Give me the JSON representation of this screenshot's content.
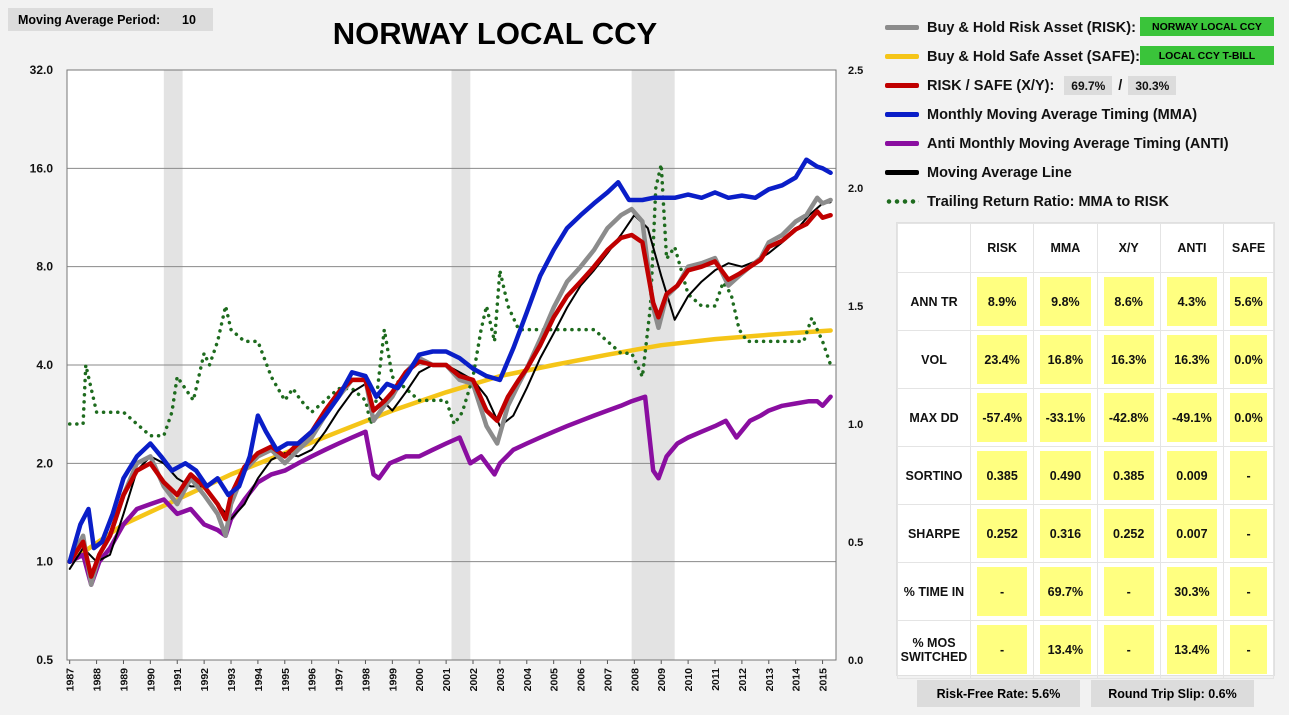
{
  "header": {
    "ma_label": "Moving Average Period:",
    "ma_value": "10"
  },
  "chart_data": {
    "type": "line",
    "title": "NORWAY LOCAL CCY",
    "y_scale": "log2",
    "ylim": [
      0.5,
      32
    ],
    "y_ticks": [
      "0.5",
      "1.0",
      "2.0",
      "4.0",
      "8.0",
      "16.0",
      "32.0"
    ],
    "y2lim": [
      0.0,
      2.5
    ],
    "y2_ticks": [
      "0.0",
      "0.5",
      "1.0",
      "1.5",
      "2.0",
      "2.5"
    ],
    "x_ticks": [
      "1987",
      "1988",
      "1989",
      "1990",
      "1991",
      "1992",
      "1993",
      "1994",
      "1995",
      "1996",
      "1997",
      "1998",
      "1999",
      "2000",
      "2001",
      "2002",
      "2003",
      "2004",
      "2005",
      "2006",
      "2007",
      "2008",
      "2009",
      "2010",
      "2011",
      "2012",
      "2013",
      "2014",
      "2015"
    ],
    "shaded_periods": [
      [
        1990.5,
        1991.2
      ],
      [
        2001.2,
        2001.9
      ],
      [
        2007.9,
        2009.5
      ]
    ],
    "series": [
      {
        "name": "Buy & Hold Risk Asset (RISK):",
        "color": "#8c8c8c",
        "axis": "left",
        "x": [
          1987.0,
          1987.5,
          1987.8,
          1988.1,
          1988.5,
          1989.0,
          1989.5,
          1990.0,
          1990.5,
          1991.0,
          1991.5,
          1992.0,
          1992.5,
          1992.8,
          1993.0,
          1993.5,
          1994.0,
          1994.5,
          1995.0,
          1995.5,
          1996.0,
          1996.5,
          1997.0,
          1997.5,
          1998.0,
          1998.3,
          1998.7,
          1999.0,
          1999.5,
          2000.0,
          2000.5,
          2001.0,
          2001.5,
          2002.0,
          2002.5,
          2002.9,
          2003.3,
          2003.7,
          2004.0,
          2004.5,
          2005.0,
          2005.5,
          2006.0,
          2006.5,
          2007.0,
          2007.5,
          2007.9,
          2008.3,
          2008.7,
          2008.9,
          2009.2,
          2009.6,
          2010.0,
          2010.5,
          2011.0,
          2011.5,
          2011.9,
          2012.3,
          2012.7,
          2013.0,
          2013.5,
          2014.0,
          2014.4,
          2014.8,
          2015.0,
          2015.3
        ],
        "y": [
          1.0,
          1.2,
          0.85,
          1.05,
          1.2,
          1.6,
          2.0,
          2.1,
          1.7,
          1.5,
          1.8,
          1.6,
          1.4,
          1.2,
          1.5,
          1.9,
          2.1,
          2.2,
          2.0,
          2.2,
          2.4,
          2.8,
          3.2,
          3.6,
          3.6,
          2.7,
          3.0,
          3.2,
          3.8,
          4.2,
          4.0,
          4.0,
          3.6,
          3.5,
          2.6,
          2.3,
          3.0,
          3.5,
          3.9,
          4.8,
          6.0,
          7.2,
          8.0,
          9.0,
          10.5,
          11.5,
          12.0,
          11.0,
          6.0,
          5.2,
          6.5,
          7.0,
          8.0,
          8.2,
          8.5,
          7.0,
          7.5,
          8.0,
          8.5,
          9.5,
          10.0,
          11.0,
          11.5,
          13.0,
          12.5,
          12.8
        ]
      },
      {
        "name": "Buy & Hold Safe Asset (SAFE):",
        "color": "#f5c518",
        "axis": "left",
        "x": [
          1987.0,
          1989.0,
          1991.0,
          1993.0,
          1995.0,
          1997.0,
          1999.0,
          2001.0,
          2003.0,
          2005.0,
          2007.0,
          2009.0,
          2011.0,
          2013.0,
          2015.3
        ],
        "y": [
          1.0,
          1.3,
          1.55,
          1.85,
          2.15,
          2.5,
          2.9,
          3.3,
          3.7,
          4.0,
          4.3,
          4.6,
          4.8,
          4.95,
          5.1
        ]
      },
      {
        "name": "RISK / SAFE (X/Y):",
        "color": "#c00000",
        "axis": "left",
        "x": [
          1987.0,
          1987.5,
          1987.8,
          1988.1,
          1988.5,
          1989.0,
          1989.5,
          1990.0,
          1990.5,
          1991.0,
          1991.5,
          1992.0,
          1992.5,
          1992.8,
          1993.0,
          1993.5,
          1994.0,
          1994.5,
          1995.0,
          1995.5,
          1996.0,
          1996.5,
          1997.0,
          1997.5,
          1998.0,
          1998.3,
          1998.7,
          1999.0,
          1999.5,
          2000.0,
          2000.5,
          2001.0,
          2001.5,
          2002.0,
          2002.5,
          2002.9,
          2003.3,
          2003.7,
          2004.0,
          2004.5,
          2005.0,
          2005.5,
          2006.0,
          2006.5,
          2007.0,
          2007.5,
          2007.9,
          2008.3,
          2008.7,
          2008.9,
          2009.2,
          2009.6,
          2010.0,
          2010.5,
          2011.0,
          2011.5,
          2011.9,
          2012.3,
          2012.7,
          2013.0,
          2013.5,
          2014.0,
          2014.4,
          2014.8,
          2015.0,
          2015.3
        ],
        "y": [
          1.0,
          1.15,
          0.9,
          1.05,
          1.2,
          1.6,
          1.9,
          2.0,
          1.75,
          1.6,
          1.85,
          1.7,
          1.5,
          1.35,
          1.6,
          1.95,
          2.15,
          2.25,
          2.1,
          2.3,
          2.5,
          2.9,
          3.3,
          3.6,
          3.6,
          2.9,
          3.1,
          3.3,
          3.8,
          4.1,
          4.0,
          4.0,
          3.7,
          3.6,
          2.9,
          2.7,
          3.2,
          3.6,
          3.9,
          4.6,
          5.6,
          6.5,
          7.2,
          8.0,
          9.0,
          9.8,
          10.0,
          9.5,
          6.2,
          5.6,
          6.6,
          7.0,
          7.8,
          8.0,
          8.3,
          7.3,
          7.6,
          8.0,
          8.4,
          9.2,
          9.6,
          10.4,
          10.8,
          11.8,
          11.3,
          11.5
        ]
      },
      {
        "name": "Monthly Moving Average Timing (MMA)",
        "color": "#0a1ec8",
        "axis": "left",
        "x": [
          1987.0,
          1987.4,
          1987.7,
          1987.9,
          1988.2,
          1988.6,
          1989.0,
          1989.5,
          1990.0,
          1990.4,
          1990.8,
          1991.3,
          1991.7,
          1992.1,
          1992.5,
          1992.9,
          1993.3,
          1993.7,
          1994.0,
          1994.3,
          1994.7,
          1995.1,
          1995.5,
          1996.0,
          1996.5,
          1997.0,
          1997.5,
          1998.0,
          1998.4,
          1998.8,
          1999.2,
          1999.6,
          2000.0,
          2000.5,
          2001.0,
          2001.5,
          2002.0,
          2002.5,
          2003.0,
          2003.5,
          2004.0,
          2004.5,
          2005.0,
          2005.5,
          2006.0,
          2006.5,
          2007.0,
          2007.4,
          2007.8,
          2008.3,
          2008.7,
          2009.1,
          2009.5,
          2010.0,
          2010.5,
          2011.0,
          2011.5,
          2012.0,
          2012.5,
          2013.0,
          2013.5,
          2014.0,
          2014.4,
          2014.8,
          2015.0,
          2015.3
        ],
        "y": [
          1.0,
          1.3,
          1.45,
          1.1,
          1.15,
          1.4,
          1.8,
          2.1,
          2.3,
          2.1,
          1.9,
          2.0,
          1.9,
          1.7,
          1.8,
          1.6,
          1.7,
          2.1,
          2.8,
          2.5,
          2.2,
          2.3,
          2.3,
          2.5,
          2.8,
          3.2,
          3.8,
          3.7,
          3.2,
          3.5,
          3.4,
          3.8,
          4.3,
          4.4,
          4.4,
          4.2,
          3.9,
          3.7,
          3.6,
          4.5,
          5.8,
          7.5,
          9.0,
          10.5,
          11.5,
          12.5,
          13.5,
          14.5,
          12.8,
          12.8,
          13.0,
          13.0,
          13.0,
          13.3,
          13.0,
          13.5,
          13.0,
          13.2,
          13.0,
          13.8,
          14.2,
          15.0,
          17.0,
          16.2,
          16.0,
          15.5
        ]
      },
      {
        "name": "Anti Monthly Moving Average Timing (ANTI)",
        "color": "#8a0ea0",
        "axis": "left",
        "x": [
          1987.0,
          1987.5,
          1987.8,
          1988.1,
          1988.5,
          1989.0,
          1989.5,
          1990.0,
          1990.5,
          1991.0,
          1991.5,
          1992.0,
          1992.5,
          1992.8,
          1993.0,
          1993.5,
          1994.0,
          1994.5,
          1995.0,
          1995.5,
          1996.0,
          1996.5,
          1997.0,
          1997.5,
          1998.0,
          1998.3,
          1998.5,
          1998.9,
          1999.5,
          2000.0,
          2000.5,
          2001.0,
          2001.5,
          2001.9,
          2002.3,
          2002.8,
          2003.0,
          2003.5,
          2004.0,
          2004.5,
          2005.0,
          2005.5,
          2006.0,
          2006.5,
          2007.0,
          2007.5,
          2007.9,
          2008.4,
          2008.7,
          2008.9,
          2009.2,
          2009.6,
          2010.0,
          2010.5,
          2011.0,
          2011.4,
          2011.8,
          2012.3,
          2012.7,
          2013.0,
          2013.5,
          2014.0,
          2014.5,
          2014.8,
          2015.0,
          2015.3
        ],
        "y": [
          1.0,
          1.05,
          0.85,
          1.0,
          1.1,
          1.3,
          1.45,
          1.5,
          1.55,
          1.4,
          1.45,
          1.3,
          1.25,
          1.2,
          1.35,
          1.55,
          1.75,
          1.85,
          1.9,
          2.0,
          2.1,
          2.2,
          2.3,
          2.4,
          2.5,
          1.85,
          1.8,
          2.0,
          2.1,
          2.1,
          2.2,
          2.3,
          2.4,
          2.0,
          2.1,
          1.85,
          2.0,
          2.2,
          2.3,
          2.4,
          2.5,
          2.6,
          2.7,
          2.8,
          2.9,
          3.0,
          3.1,
          3.2,
          1.9,
          1.8,
          2.1,
          2.3,
          2.4,
          2.5,
          2.6,
          2.7,
          2.4,
          2.7,
          2.8,
          2.9,
          3.0,
          3.05,
          3.1,
          3.1,
          3.0,
          3.2
        ]
      },
      {
        "name": "Moving Average Line",
        "color": "#000000",
        "axis": "left",
        "x": [
          1987.0,
          1987.5,
          1988.0,
          1988.5,
          1989.0,
          1989.5,
          1990.0,
          1990.5,
          1991.0,
          1991.5,
          1992.0,
          1992.5,
          1993.0,
          1993.5,
          1994.0,
          1994.5,
          1995.0,
          1995.5,
          1996.0,
          1996.5,
          1997.0,
          1997.5,
          1998.0,
          1998.5,
          1999.0,
          1999.5,
          2000.0,
          2000.5,
          2001.0,
          2001.5,
          2002.0,
          2002.5,
          2003.0,
          2003.5,
          2004.0,
          2004.5,
          2005.0,
          2005.5,
          2006.0,
          2006.5,
          2007.0,
          2007.5,
          2008.0,
          2008.5,
          2009.0,
          2009.5,
          2010.0,
          2010.5,
          2011.0,
          2011.5,
          2012.0,
          2012.5,
          2013.0,
          2013.5,
          2014.0,
          2014.5,
          2015.0,
          2015.3
        ],
        "y": [
          0.95,
          1.1,
          1.0,
          1.05,
          1.4,
          1.9,
          2.1,
          2.0,
          1.8,
          1.7,
          1.7,
          1.5,
          1.35,
          1.5,
          1.8,
          2.05,
          2.15,
          2.1,
          2.2,
          2.5,
          2.9,
          3.3,
          3.5,
          3.2,
          2.9,
          3.3,
          3.8,
          4.0,
          4.0,
          3.8,
          3.6,
          3.2,
          2.6,
          2.8,
          3.4,
          4.2,
          5.0,
          6.0,
          7.0,
          7.8,
          8.8,
          10.0,
          11.5,
          10.5,
          7.5,
          5.5,
          6.5,
          7.2,
          7.8,
          8.2,
          8.0,
          8.3,
          8.8,
          9.5,
          10.3,
          11.5,
          12.5,
          12.6
        ]
      },
      {
        "name": "Trailing Return Ratio: MMA to RISK",
        "color": "#1e6b1e",
        "axis": "right",
        "dotted": true,
        "x": [
          1987.0,
          1987.5,
          1987.6,
          1987.8,
          1988.0,
          1988.5,
          1989.0,
          1989.5,
          1990.0,
          1990.5,
          1990.8,
          1991.0,
          1991.3,
          1991.6,
          1992.0,
          1992.2,
          1992.5,
          1992.8,
          1993.0,
          1993.5,
          1994.0,
          1994.5,
          1995.0,
          1995.3,
          1995.6,
          1996.0,
          1996.5,
          1997.0,
          1997.5,
          1998.0,
          1998.2,
          1998.4,
          1998.7,
          1999.0,
          1999.5,
          2000.0,
          2000.5,
          2001.0,
          2001.3,
          2001.6,
          2002.0,
          2002.3,
          2002.5,
          2002.8,
          2003.0,
          2003.3,
          2003.7,
          2004.0,
          2004.5,
          2005.0,
          2005.5,
          2006.0,
          2006.5,
          2007.0,
          2007.5,
          2007.9,
          2008.3,
          2008.6,
          2008.8,
          2009.0,
          2009.2,
          2009.5,
          2010.0,
          2010.5,
          2011.0,
          2011.3,
          2011.6,
          2011.9,
          2012.2,
          2012.5,
          2013.0,
          2013.5,
          2014.0,
          2014.3,
          2014.6,
          2015.0,
          2015.3
        ],
        "y": [
          1.0,
          1.0,
          1.25,
          1.15,
          1.05,
          1.05,
          1.05,
          1.0,
          0.95,
          0.95,
          1.05,
          1.2,
          1.15,
          1.1,
          1.3,
          1.25,
          1.35,
          1.5,
          1.4,
          1.35,
          1.35,
          1.2,
          1.1,
          1.15,
          1.1,
          1.05,
          1.1,
          1.15,
          1.15,
          1.1,
          1.0,
          1.1,
          1.4,
          1.2,
          1.15,
          1.1,
          1.1,
          1.1,
          1.0,
          1.05,
          1.2,
          1.4,
          1.5,
          1.35,
          1.65,
          1.5,
          1.4,
          1.4,
          1.4,
          1.4,
          1.4,
          1.4,
          1.4,
          1.35,
          1.3,
          1.3,
          1.2,
          1.5,
          2.0,
          2.1,
          1.7,
          1.75,
          1.55,
          1.5,
          1.5,
          1.6,
          1.55,
          1.4,
          1.35,
          1.35,
          1.35,
          1.35,
          1.35,
          1.35,
          1.45,
          1.35,
          1.25
        ]
      }
    ]
  },
  "legend": {
    "risk_badge": "NORWAY LOCAL CCY",
    "safe_badge": "LOCAL CCY T-BILL",
    "xy_risk_pct": "69.7%",
    "xy_sep": "/",
    "xy_safe_pct": "30.3%"
  },
  "stats": {
    "columns": [
      "",
      "RISK",
      "MMA",
      "X/Y",
      "ANTI",
      "SAFE"
    ],
    "rows": [
      {
        "label": "ANN TR",
        "values": [
          "8.9%",
          "9.8%",
          "8.6%",
          "4.3%",
          "5.6%"
        ]
      },
      {
        "label": "VOL",
        "values": [
          "23.4%",
          "16.8%",
          "16.3%",
          "16.3%",
          "0.0%"
        ]
      },
      {
        "label": "MAX DD",
        "values": [
          "-57.4%",
          "-33.1%",
          "-42.8%",
          "-49.1%",
          "0.0%"
        ]
      },
      {
        "label": "SORTINO",
        "values": [
          "0.385",
          "0.490",
          "0.385",
          "0.009",
          "-"
        ]
      },
      {
        "label": "SHARPE",
        "values": [
          "0.252",
          "0.316",
          "0.252",
          "0.007",
          "-"
        ]
      },
      {
        "label": "% TIME IN",
        "values": [
          "-",
          "69.7%",
          "-",
          "30.3%",
          "-"
        ]
      },
      {
        "label": "% MOS SWITCHED",
        "values": [
          "-",
          "13.4%",
          "-",
          "13.4%",
          "-"
        ]
      }
    ]
  },
  "footer": {
    "risk_free": "Risk-Free Rate:  5.6%",
    "round_trip": "Round Trip Slip:  0.6%"
  }
}
